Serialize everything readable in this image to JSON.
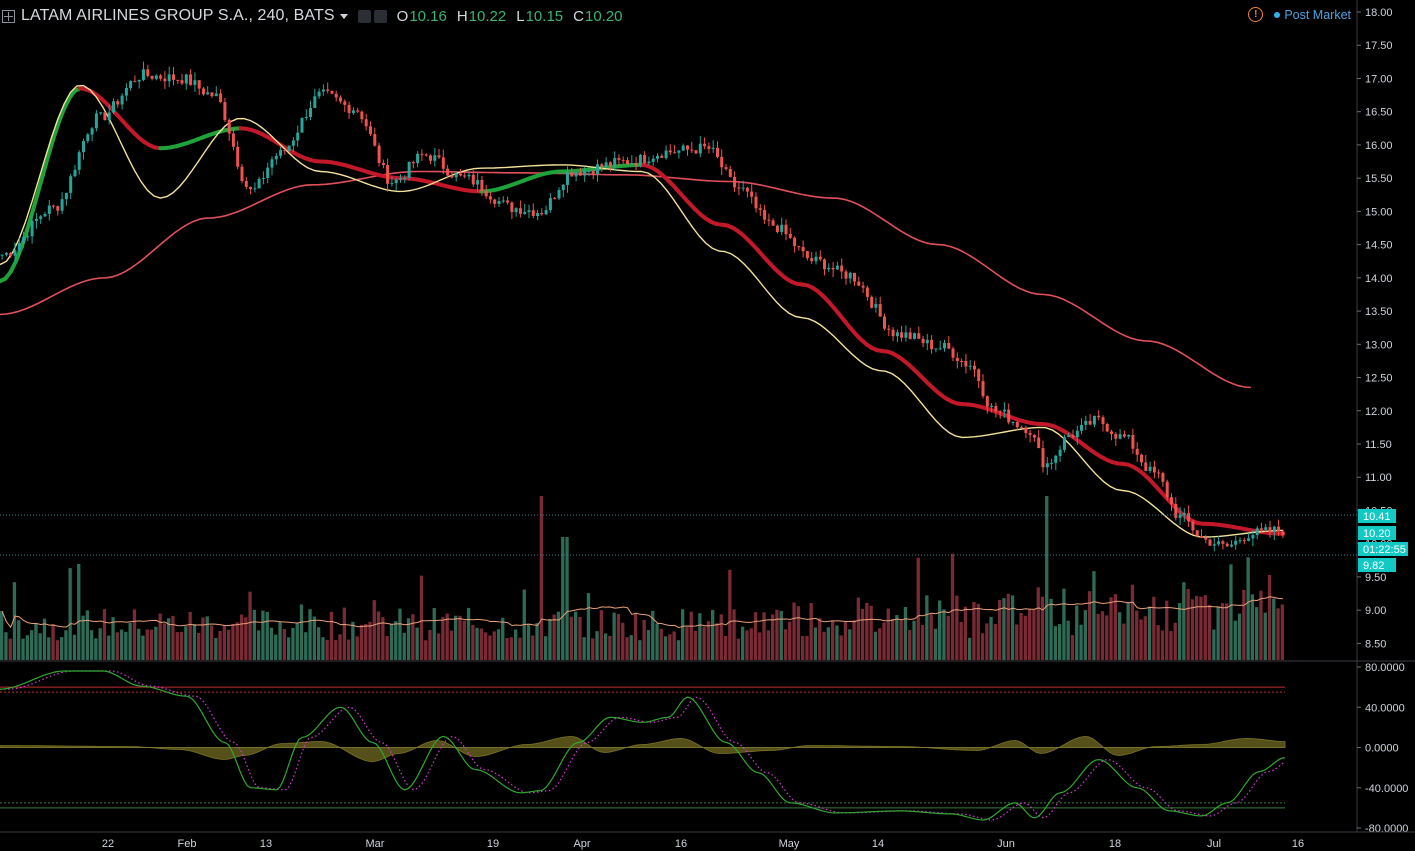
{
  "header": {
    "title": "LATAM AIRLINES GROUP S.A., 240, BATS",
    "ohlc": [
      {
        "key": "O",
        "value": "10.16"
      },
      {
        "key": "H",
        "value": "10.22"
      },
      {
        "key": "L",
        "value": "10.15"
      },
      {
        "key": "C",
        "value": "10.20"
      }
    ],
    "market_status": "Post Market",
    "warning_glyph": "!"
  },
  "colors": {
    "up": "#2e6b57",
    "down": "#7a2a35",
    "candle_up": "#26a69a",
    "candle_down": "#ef5350",
    "ema_fast": "#f3e29a",
    "ema_mid_up": "#1ea33a",
    "ema_mid_down": "#c21829",
    "ema_slow": "#e0505a",
    "vol_ma": "#e8a07a",
    "axis_text": "#cfd3dc",
    "label_bg": "#13c9c4",
    "osc_line": "#2fa82f",
    "osc_signal": "#d63bd6",
    "osc_hist": "#55501a",
    "band_red": "#c03030",
    "band_green": "#3a7a3a"
  },
  "chart_data": [
    {
      "type": "candlestick",
      "title": "LATAM AIRLINES GROUP S.A., 240, BATS",
      "ylim": [
        8.25,
        18.0
      ],
      "yticks": [
        "18.00",
        "17.50",
        "17.00",
        "16.50",
        "16.00",
        "15.50",
        "15.00",
        "14.50",
        "14.00",
        "13.50",
        "13.00",
        "12.50",
        "12.00",
        "11.50",
        "11.00",
        "10.50",
        "10.00",
        "9.50",
        "9.00",
        "8.50"
      ],
      "xticks": [
        "22",
        "Feb",
        "13",
        "Mar",
        "19",
        "Apr",
        "16",
        "May",
        "14",
        "Jun",
        "18",
        "Jul",
        "16"
      ],
      "close_anchors": [
        {
          "t": 0,
          "v": 14.35
        },
        {
          "t": 0.04,
          "v": 15.05
        },
        {
          "t": 0.075,
          "v": 16.4
        },
        {
          "t": 0.11,
          "v": 17.05
        },
        {
          "t": 0.14,
          "v": 17.0
        },
        {
          "t": 0.165,
          "v": 16.75
        },
        {
          "t": 0.195,
          "v": 15.3
        },
        {
          "t": 0.215,
          "v": 15.85
        },
        {
          "t": 0.25,
          "v": 16.75
        },
        {
          "t": 0.275,
          "v": 16.55
        },
        {
          "t": 0.305,
          "v": 15.45
        },
        {
          "t": 0.33,
          "v": 15.85
        },
        {
          "t": 0.36,
          "v": 15.5
        },
        {
          "t": 0.4,
          "v": 15.05
        },
        {
          "t": 0.42,
          "v": 15.0
        },
        {
          "t": 0.445,
          "v": 15.6
        },
        {
          "t": 0.49,
          "v": 15.75
        },
        {
          "t": 0.52,
          "v": 15.9
        },
        {
          "t": 0.55,
          "v": 15.95
        },
        {
          "t": 0.575,
          "v": 15.35
        },
        {
          "t": 0.6,
          "v": 14.8
        },
        {
          "t": 0.635,
          "v": 14.25
        },
        {
          "t": 0.66,
          "v": 14.05
        },
        {
          "t": 0.7,
          "v": 13.15
        },
        {
          "t": 0.735,
          "v": 12.95
        },
        {
          "t": 0.755,
          "v": 12.7
        },
        {
          "t": 0.775,
          "v": 12.0
        },
        {
          "t": 0.8,
          "v": 11.75
        },
        {
          "t": 0.815,
          "v": 11.2
        },
        {
          "t": 0.835,
          "v": 11.65
        },
        {
          "t": 0.855,
          "v": 11.85
        },
        {
          "t": 0.875,
          "v": 11.6
        },
        {
          "t": 0.9,
          "v": 11.05
        },
        {
          "t": 0.92,
          "v": 10.4
        },
        {
          "t": 0.94,
          "v": 10.05
        },
        {
          "t": 0.955,
          "v": 9.95
        },
        {
          "t": 0.975,
          "v": 10.15
        },
        {
          "t": 1.0,
          "v": 10.2
        }
      ],
      "series": [
        {
          "name": "EMA fast",
          "values": [
            14.2,
            16.9,
            15.2,
            16.4,
            15.6,
            15.3,
            15.65,
            15.7,
            15.6,
            14.4,
            13.4,
            12.6,
            11.6,
            11.75,
            10.8,
            10.1,
            10.2
          ]
        },
        {
          "name": "EMA mid",
          "values": [
            13.95,
            16.85,
            15.95,
            16.25,
            15.75,
            15.5,
            15.3,
            15.6,
            15.7,
            14.8,
            13.9,
            12.9,
            12.1,
            11.8,
            11.2,
            10.3,
            10.15
          ]
        },
        {
          "name": "EMA slow",
          "values": [
            13.45,
            14.0,
            14.9,
            15.4,
            15.6,
            15.58,
            15.55,
            15.45,
            15.2,
            14.5,
            13.75,
            13.05,
            12.35
          ]
        }
      ],
      "last_price_labels": [
        "10.41",
        "10.20",
        "01:22:55",
        "9.82"
      ]
    },
    {
      "type": "bar",
      "title": "Volume",
      "notable_spikes": [
        {
          "t": 0.42,
          "level": "max"
        },
        {
          "t": 0.815,
          "level": "max"
        }
      ]
    },
    {
      "type": "line",
      "title": "Oscillator",
      "ylim": [
        -80,
        80
      ],
      "yticks": [
        "80.0000",
        "40.0000",
        "0.0000",
        "-40.0000",
        "-80.0000"
      ],
      "upper_band": 55,
      "lower_band": -55,
      "series": [
        {
          "name": "main",
          "anchors": [
            {
              "t": 0,
              "v": 58
            },
            {
              "t": 0.05,
              "v": 76
            },
            {
              "t": 0.08,
              "v": 76
            },
            {
              "t": 0.11,
              "v": 61
            },
            {
              "t": 0.145,
              "v": 51
            },
            {
              "t": 0.175,
              "v": 5
            },
            {
              "t": 0.195,
              "v": -40
            },
            {
              "t": 0.215,
              "v": -42
            },
            {
              "t": 0.235,
              "v": 10
            },
            {
              "t": 0.265,
              "v": 40
            },
            {
              "t": 0.29,
              "v": 5
            },
            {
              "t": 0.315,
              "v": -42
            },
            {
              "t": 0.345,
              "v": 11
            },
            {
              "t": 0.37,
              "v": -22
            },
            {
              "t": 0.405,
              "v": -45
            },
            {
              "t": 0.42,
              "v": -43
            },
            {
              "t": 0.45,
              "v": 5
            },
            {
              "t": 0.475,
              "v": 30
            },
            {
              "t": 0.5,
              "v": 25
            },
            {
              "t": 0.52,
              "v": 30
            },
            {
              "t": 0.535,
              "v": 50
            },
            {
              "t": 0.565,
              "v": 5
            },
            {
              "t": 0.59,
              "v": -25
            },
            {
              "t": 0.615,
              "v": -55
            },
            {
              "t": 0.65,
              "v": -65
            },
            {
              "t": 0.7,
              "v": -63
            },
            {
              "t": 0.74,
              "v": -66
            },
            {
              "t": 0.765,
              "v": -72
            },
            {
              "t": 0.79,
              "v": -55
            },
            {
              "t": 0.805,
              "v": -70
            },
            {
              "t": 0.825,
              "v": -45
            },
            {
              "t": 0.855,
              "v": -12
            },
            {
              "t": 0.885,
              "v": -40
            },
            {
              "t": 0.91,
              "v": -63
            },
            {
              "t": 0.935,
              "v": -68
            },
            {
              "t": 0.955,
              "v": -55
            },
            {
              "t": 0.98,
              "v": -24
            },
            {
              "t": 1.0,
              "v": -10
            }
          ]
        },
        {
          "name": "signal",
          "lag": 0.007
        },
        {
          "name": "histogram",
          "anchors": [
            {
              "t": 0,
              "v": 2
            },
            {
              "t": 0.1,
              "v": 1
            },
            {
              "t": 0.14,
              "v": -2
            },
            {
              "t": 0.175,
              "v": -12
            },
            {
              "t": 0.19,
              "v": -8
            },
            {
              "t": 0.22,
              "v": 4
            },
            {
              "t": 0.25,
              "v": 6
            },
            {
              "t": 0.29,
              "v": -14
            },
            {
              "t": 0.31,
              "v": -6
            },
            {
              "t": 0.34,
              "v": 7
            },
            {
              "t": 0.37,
              "v": -9
            },
            {
              "t": 0.41,
              "v": 3
            },
            {
              "t": 0.445,
              "v": 11
            },
            {
              "t": 0.47,
              "v": -5
            },
            {
              "t": 0.5,
              "v": 3
            },
            {
              "t": 0.53,
              "v": 9
            },
            {
              "t": 0.56,
              "v": -6
            },
            {
              "t": 0.6,
              "v": -3
            },
            {
              "t": 0.63,
              "v": 2
            },
            {
              "t": 0.7,
              "v": 1
            },
            {
              "t": 0.76,
              "v": -3
            },
            {
              "t": 0.79,
              "v": 7
            },
            {
              "t": 0.81,
              "v": -6
            },
            {
              "t": 0.845,
              "v": 11
            },
            {
              "t": 0.87,
              "v": -8
            },
            {
              "t": 0.9,
              "v": 1
            },
            {
              "t": 0.935,
              "v": 3
            },
            {
              "t": 0.97,
              "v": 9
            },
            {
              "t": 1.0,
              "v": 6
            }
          ]
        }
      ]
    }
  ]
}
